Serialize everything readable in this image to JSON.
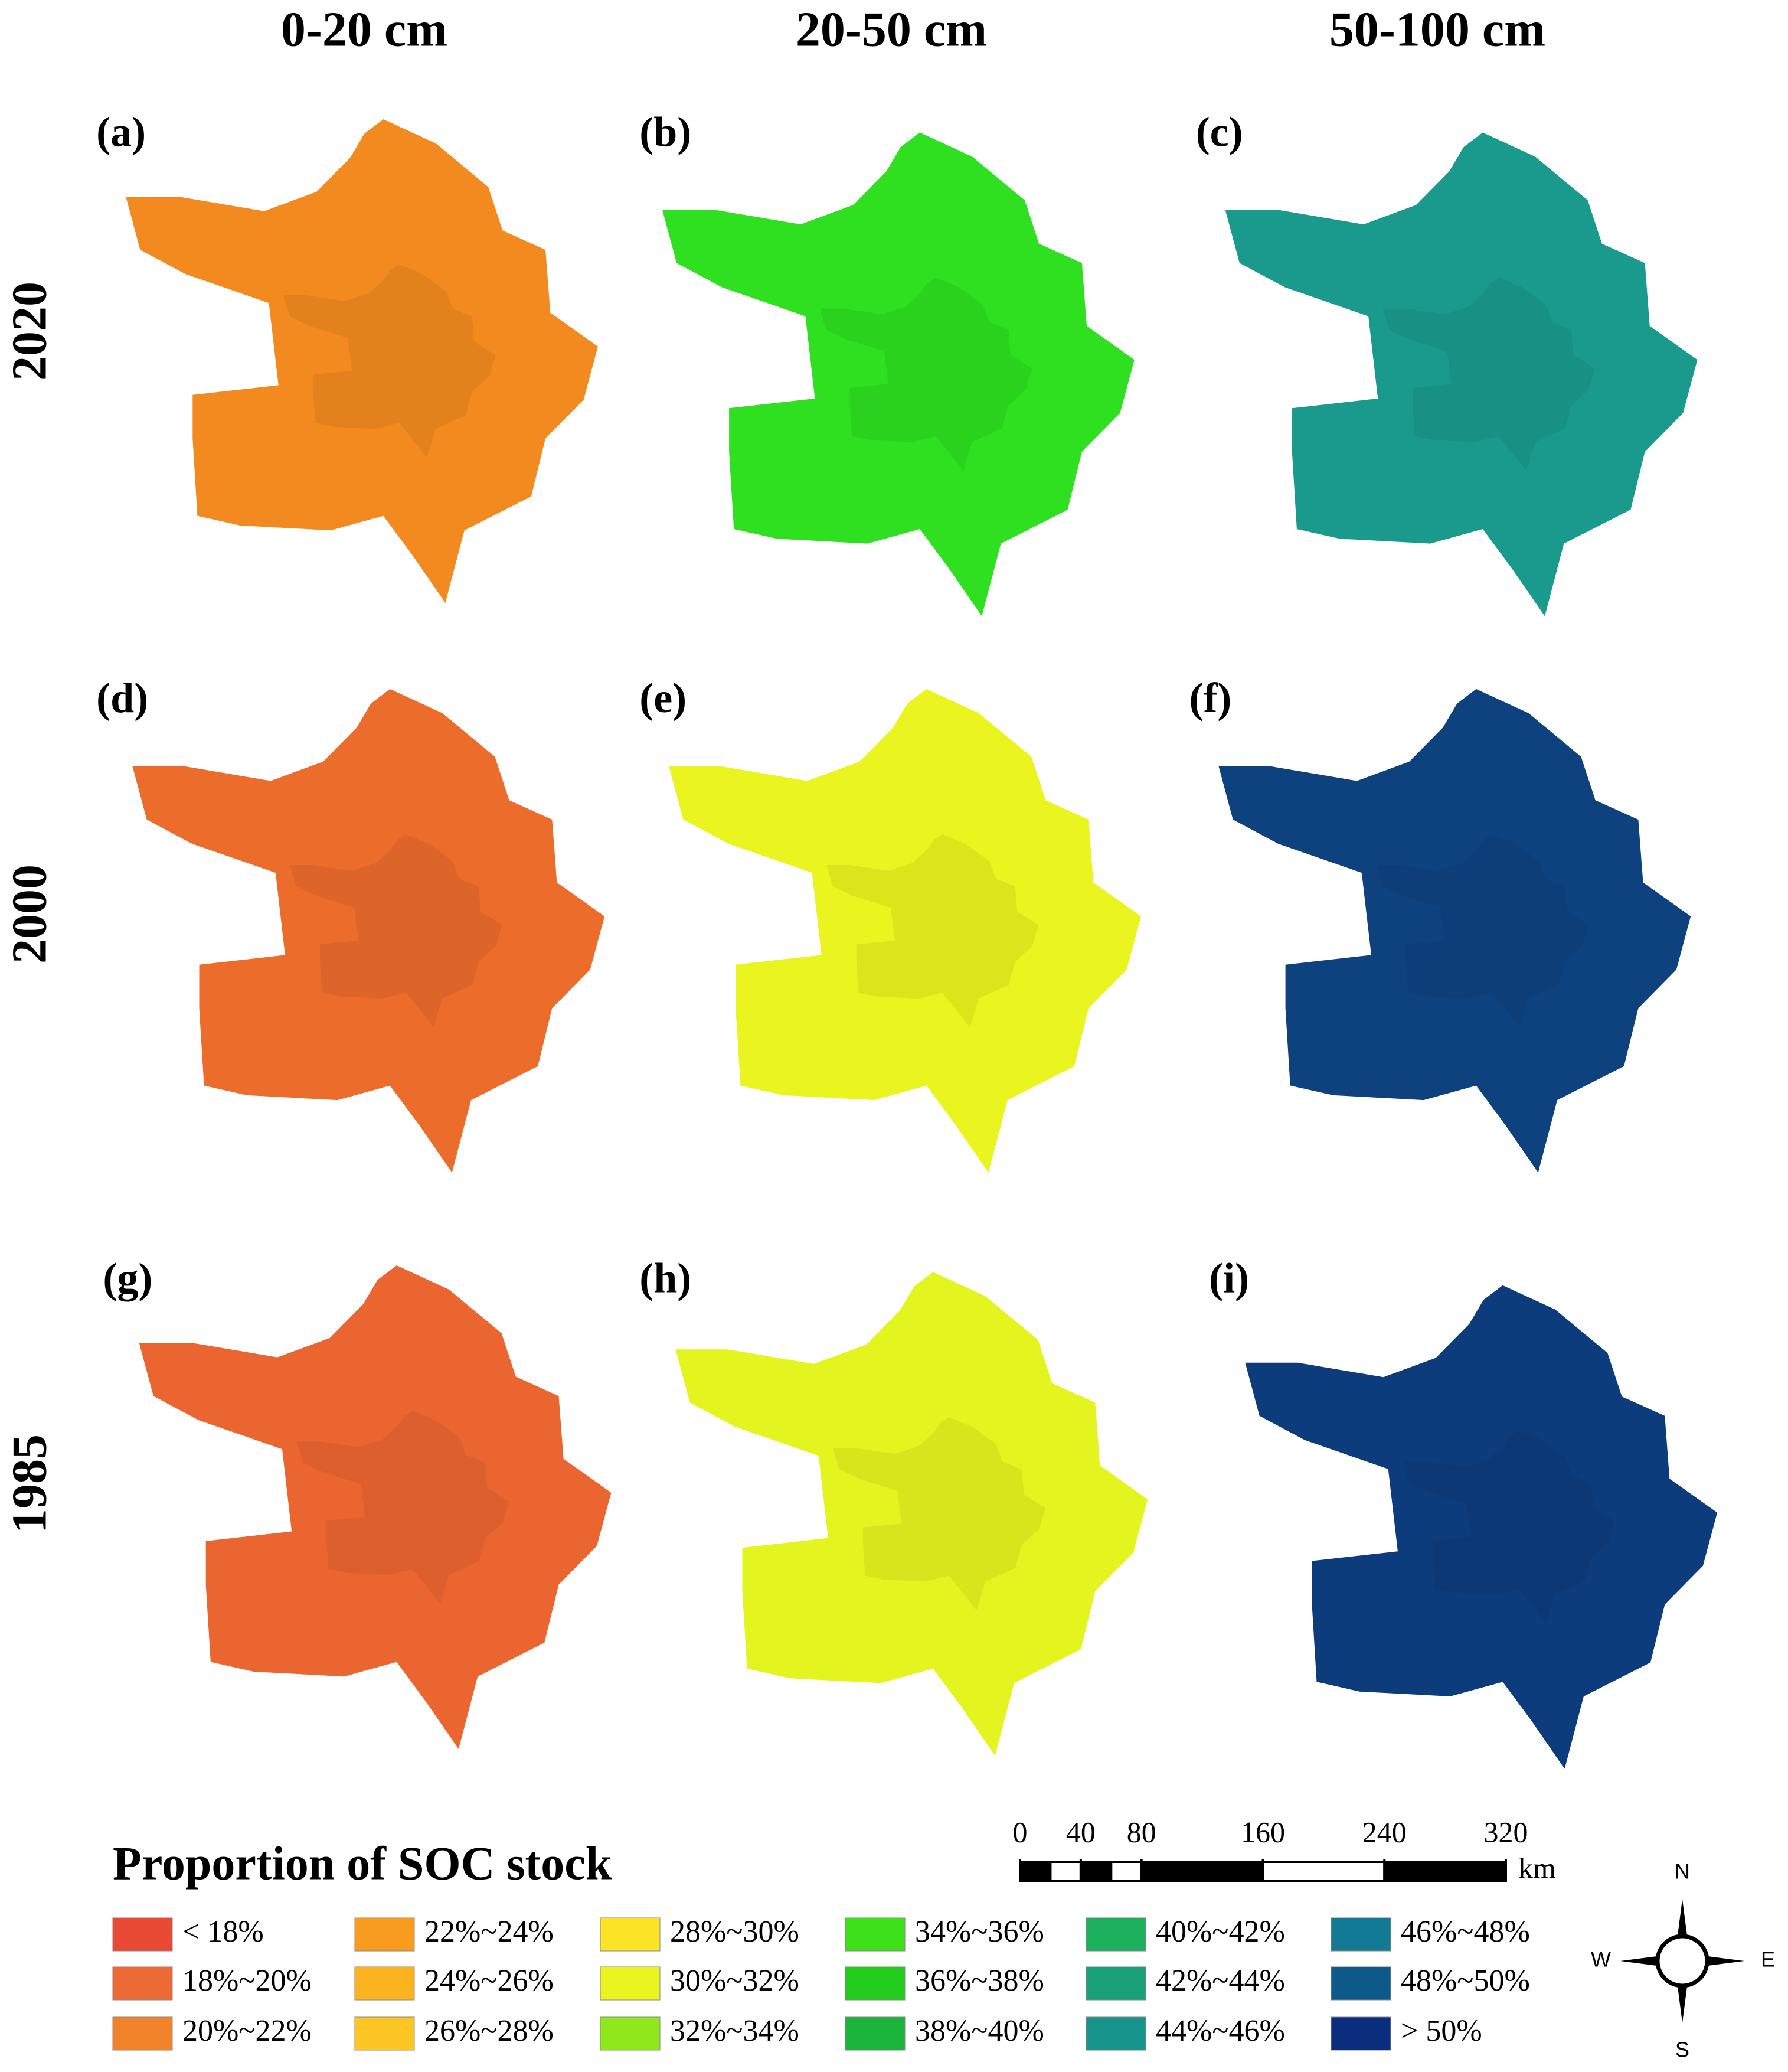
{
  "columns": [
    "0-20 cm",
    "20-50 cm",
    "50-100 cm"
  ],
  "rows": [
    "2020",
    "2000",
    "1985"
  ],
  "panels": [
    {
      "label": "(a)",
      "color": "#f28a1f"
    },
    {
      "label": "(b)",
      "color": "#2ee01f"
    },
    {
      "label": "(c)",
      "color": "#1a9a8c"
    },
    {
      "label": "(d)",
      "color": "#ec6c2c"
    },
    {
      "label": "(e)",
      "color": "#eaf41e"
    },
    {
      "label": "(f)",
      "color": "#0e427f"
    },
    {
      "label": "(g)",
      "color": "#ea6530"
    },
    {
      "label": "(h)",
      "color": "#e4f41e"
    },
    {
      "label": "(i)",
      "color": "#0d3c7d"
    }
  ],
  "legend": {
    "title": "Proportion of SOC stock",
    "items": [
      {
        "label": "< 18%",
        "color": "#e84a35"
      },
      {
        "label": "18%~20%",
        "color": "#ec6a35"
      },
      {
        "label": "20%~22%",
        "color": "#f2832a"
      },
      {
        "label": "22%~24%",
        "color": "#f89b1f"
      },
      {
        "label": "24%~26%",
        "color": "#fbb320"
      },
      {
        "label": "26%~28%",
        "color": "#fdc624"
      },
      {
        "label": "28%~30%",
        "color": "#fbe425"
      },
      {
        "label": "30%~32%",
        "color": "#eaf51f"
      },
      {
        "label": "32%~34%",
        "color": "#8ee81c"
      },
      {
        "label": "34%~36%",
        "color": "#3ee01a"
      },
      {
        "label": "36%~38%",
        "color": "#21cc1d"
      },
      {
        "label": "38%~40%",
        "color": "#1ab53a"
      },
      {
        "label": "40%~42%",
        "color": "#1cb05c"
      },
      {
        "label": "42%~44%",
        "color": "#1aa078"
      },
      {
        "label": "44%~46%",
        "color": "#17958c"
      },
      {
        "label": "46%~48%",
        "color": "#127a94"
      },
      {
        "label": "48%~50%",
        "color": "#0d5a8a"
      },
      {
        "label": "> 50%",
        "color": "#0a2e7d"
      }
    ]
  },
  "scale_bar": {
    "ticks": [
      0,
      40,
      80,
      160,
      240,
      320
    ],
    "unit": "km"
  },
  "compass": {
    "n": "N",
    "e": "E",
    "s": "S",
    "w": "W"
  }
}
